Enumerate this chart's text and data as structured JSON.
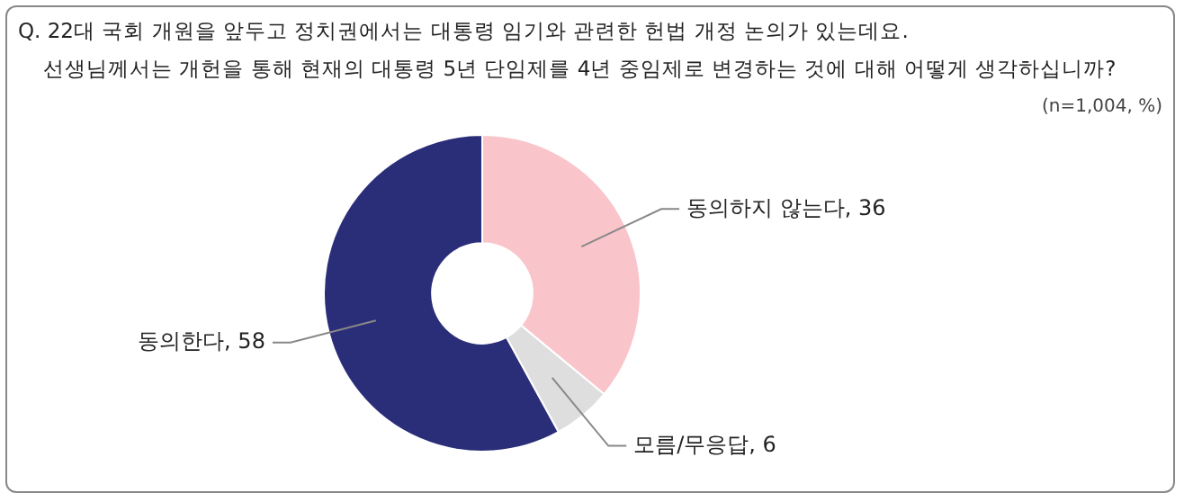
{
  "chart_data": {
    "type": "donut",
    "title": "Q. 22대 국회 개원을 앞두고 정치권에서는 대통령 임기와 관련한 헌법 개정 논의가 있는데요.",
    "subtitle": "선생님께서는 개헌을 통해 현재의 대통령 5년 단임제를 4년 중임제로 변경하는 것에 대해 어떻게 생각하십니까?",
    "annotations": [
      "(n=1,004, %)"
    ],
    "categories": [
      "동의하지 않는다, 36",
      "모름/무응답, 6",
      "동의한다, 58"
    ],
    "values": [
      36,
      6,
      58
    ],
    "colors": [
      "#f9c5cb",
      "#dedede",
      "#2a2d78"
    ]
  }
}
